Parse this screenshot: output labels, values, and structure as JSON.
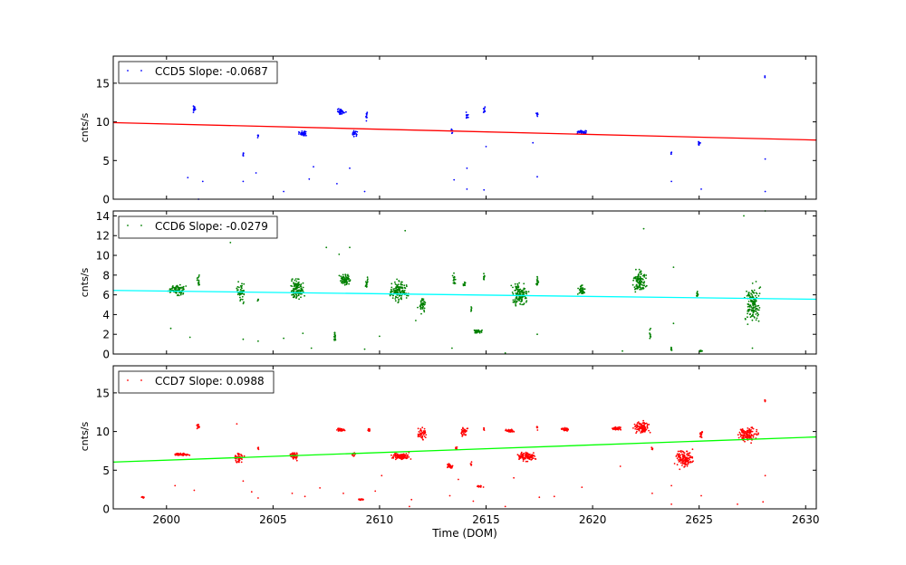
{
  "chart_data": [
    {
      "type": "scatter",
      "legend_label": "CCD5 Slope: -0.0687",
      "legend_placement": "top-left",
      "ylabel": "cnts/s",
      "xlim": [
        2597.5,
        2630.5
      ],
      "ylim": [
        0,
        18.5
      ],
      "yticks": [
        0,
        5,
        10,
        15
      ],
      "point_color": "#0000ff",
      "fit_color": "#ff0000",
      "fit_line": [
        [
          2597.5,
          9.9
        ],
        [
          2630.5,
          7.65
        ]
      ],
      "clusters": [
        {
          "x": 2601.3,
          "y": 11.6,
          "dx": 0.12,
          "dy": 0.6,
          "n": 20
        },
        {
          "x": 2603.6,
          "y": 5.8,
          "dx": 0.05,
          "dy": 0.4,
          "n": 5
        },
        {
          "x": 2604.3,
          "y": 8.2,
          "dx": 0.05,
          "dy": 0.4,
          "n": 5
        },
        {
          "x": 2606.4,
          "y": 8.5,
          "dx": 0.25,
          "dy": 0.4,
          "n": 35
        },
        {
          "x": 2608.2,
          "y": 11.3,
          "dx": 0.25,
          "dy": 0.5,
          "n": 35
        },
        {
          "x": 2608.8,
          "y": 8.5,
          "dx": 0.2,
          "dy": 0.5,
          "n": 20
        },
        {
          "x": 2609.4,
          "y": 10.8,
          "dx": 0.06,
          "dy": 0.8,
          "n": 10
        },
        {
          "x": 2613.4,
          "y": 8.9,
          "dx": 0.08,
          "dy": 0.4,
          "n": 8
        },
        {
          "x": 2614.1,
          "y": 10.9,
          "dx": 0.08,
          "dy": 0.6,
          "n": 10
        },
        {
          "x": 2614.9,
          "y": 11.5,
          "dx": 0.07,
          "dy": 0.7,
          "n": 10
        },
        {
          "x": 2617.4,
          "y": 11.0,
          "dx": 0.06,
          "dy": 0.5,
          "n": 8
        },
        {
          "x": 2619.5,
          "y": 8.7,
          "dx": 0.35,
          "dy": 0.3,
          "n": 40
        },
        {
          "x": 2623.7,
          "y": 6.0,
          "dx": 0.04,
          "dy": 0.3,
          "n": 4
        },
        {
          "x": 2625.0,
          "y": 7.2,
          "dx": 0.07,
          "dy": 0.4,
          "n": 12
        },
        {
          "x": 2628.1,
          "y": 15.8,
          "dx": 0.04,
          "dy": 0.5,
          "n": 3
        }
      ],
      "outliers": [
        [
          2601.0,
          2.8
        ],
        [
          2601.5,
          0.0
        ],
        [
          2601.7,
          2.3
        ],
        [
          2603.6,
          2.3
        ],
        [
          2604.2,
          3.4
        ],
        [
          2605.5,
          1.0
        ],
        [
          2606.7,
          2.6
        ],
        [
          2606.9,
          4.2
        ],
        [
          2608.0,
          2.0
        ],
        [
          2608.6,
          4.0
        ],
        [
          2609.3,
          1.0
        ],
        [
          2613.5,
          2.5
        ],
        [
          2614.1,
          1.3
        ],
        [
          2614.1,
          4.0
        ],
        [
          2614.9,
          1.2
        ],
        [
          2615.0,
          6.8
        ],
        [
          2617.4,
          2.9
        ],
        [
          2617.2,
          7.3
        ],
        [
          2623.7,
          2.3
        ],
        [
          2625.1,
          1.3
        ],
        [
          2628.1,
          1.0
        ],
        [
          2628.1,
          5.2
        ]
      ]
    },
    {
      "type": "scatter",
      "legend_label": "CCD6 Slope: -0.0279",
      "legend_placement": "top-left",
      "ylabel": "cnts/s",
      "xlim": [
        2597.5,
        2630.5
      ],
      "ylim": [
        0,
        14.5
      ],
      "yticks": [
        0,
        2,
        4,
        6,
        8,
        10,
        12,
        14
      ],
      "point_color": "#008000",
      "fit_color": "#00ffff",
      "fit_line": [
        [
          2597.5,
          6.45
        ],
        [
          2630.5,
          5.55
        ]
      ],
      "clusters": [
        {
          "x": 2600.5,
          "y": 6.5,
          "dx": 0.5,
          "dy": 0.8,
          "n": 80
        },
        {
          "x": 2601.5,
          "y": 7.4,
          "dx": 0.1,
          "dy": 0.8,
          "n": 15
        },
        {
          "x": 2603.5,
          "y": 6.2,
          "dx": 0.25,
          "dy": 1.3,
          "n": 50
        },
        {
          "x": 2604.3,
          "y": 5.5,
          "dx": 0.05,
          "dy": 0.4,
          "n": 5
        },
        {
          "x": 2606.1,
          "y": 6.5,
          "dx": 0.45,
          "dy": 1.5,
          "n": 110
        },
        {
          "x": 2607.9,
          "y": 1.8,
          "dx": 0.06,
          "dy": 0.7,
          "n": 15
        },
        {
          "x": 2608.4,
          "y": 7.5,
          "dx": 0.35,
          "dy": 0.8,
          "n": 70
        },
        {
          "x": 2609.4,
          "y": 7.2,
          "dx": 0.07,
          "dy": 0.8,
          "n": 15
        },
        {
          "x": 2610.9,
          "y": 6.4,
          "dx": 0.55,
          "dy": 1.4,
          "n": 140
        },
        {
          "x": 2612.0,
          "y": 5.0,
          "dx": 0.25,
          "dy": 1.1,
          "n": 40
        },
        {
          "x": 2613.5,
          "y": 7.6,
          "dx": 0.1,
          "dy": 1.0,
          "n": 15
        },
        {
          "x": 2614.0,
          "y": 7.0,
          "dx": 0.1,
          "dy": 0.5,
          "n": 10
        },
        {
          "x": 2614.3,
          "y": 4.6,
          "dx": 0.05,
          "dy": 0.4,
          "n": 5
        },
        {
          "x": 2614.6,
          "y": 2.3,
          "dx": 0.25,
          "dy": 0.3,
          "n": 35
        },
        {
          "x": 2614.9,
          "y": 7.8,
          "dx": 0.07,
          "dy": 0.6,
          "n": 10
        },
        {
          "x": 2616.6,
          "y": 6.0,
          "dx": 0.5,
          "dy": 1.5,
          "n": 130
        },
        {
          "x": 2617.4,
          "y": 7.2,
          "dx": 0.07,
          "dy": 1.0,
          "n": 15
        },
        {
          "x": 2619.5,
          "y": 6.5,
          "dx": 0.25,
          "dy": 0.6,
          "n": 40
        },
        {
          "x": 2622.2,
          "y": 7.5,
          "dx": 0.4,
          "dy": 1.5,
          "n": 110
        },
        {
          "x": 2622.7,
          "y": 2.2,
          "dx": 0.05,
          "dy": 0.9,
          "n": 10
        },
        {
          "x": 2623.7,
          "y": 0.6,
          "dx": 0.04,
          "dy": 0.4,
          "n": 8
        },
        {
          "x": 2624.9,
          "y": 6.0,
          "dx": 0.06,
          "dy": 0.6,
          "n": 10
        },
        {
          "x": 2625.1,
          "y": 0.3,
          "dx": 0.15,
          "dy": 0.1,
          "n": 15
        },
        {
          "x": 2627.5,
          "y": 5.0,
          "dx": 0.45,
          "dy": 2.7,
          "n": 140
        }
      ],
      "outliers": [
        [
          2600.2,
          2.6
        ],
        [
          2601.1,
          1.7
        ],
        [
          2603.0,
          11.3
        ],
        [
          2603.6,
          1.5
        ],
        [
          2604.3,
          1.3
        ],
        [
          2605.5,
          1.6
        ],
        [
          2606.4,
          2.1
        ],
        [
          2606.8,
          0.6
        ],
        [
          2607.5,
          10.8
        ],
        [
          2608.1,
          10.1
        ],
        [
          2608.6,
          10.8
        ],
        [
          2609.3,
          0.5
        ],
        [
          2610.0,
          1.8
        ],
        [
          2611.2,
          12.5
        ],
        [
          2611.7,
          3.4
        ],
        [
          2613.4,
          0.6
        ],
        [
          2615.9,
          0.1
        ],
        [
          2617.4,
          2.0
        ],
        [
          2621.4,
          0.3
        ],
        [
          2622.4,
          12.7
        ],
        [
          2623.8,
          8.8
        ],
        [
          2623.8,
          3.1
        ],
        [
          2627.1,
          14.0
        ],
        [
          2628.1,
          14.5
        ],
        [
          2627.5,
          0.6
        ]
      ]
    },
    {
      "type": "scatter",
      "legend_label": "CCD7 Slope: 0.0988",
      "legend_placement": "top-left",
      "ylabel": "cnts/s",
      "xlabel": "Time (DOM)",
      "xlim": [
        2597.5,
        2630.5
      ],
      "ylim": [
        0,
        18.5
      ],
      "yticks": [
        0,
        5,
        10,
        15
      ],
      "xticks": [
        2600,
        2605,
        2610,
        2615,
        2620,
        2625,
        2630
      ],
      "point_color": "#ff0000",
      "fit_color": "#00ff00",
      "fit_line": [
        [
          2597.5,
          6.05
        ],
        [
          2630.5,
          9.3
        ]
      ],
      "clusters": [
        {
          "x": 2598.9,
          "y": 1.5,
          "dx": 0.1,
          "dy": 0.15,
          "n": 10
        },
        {
          "x": 2600.7,
          "y": 7.0,
          "dx": 0.55,
          "dy": 0.25,
          "n": 50
        },
        {
          "x": 2601.5,
          "y": 10.7,
          "dx": 0.1,
          "dy": 0.4,
          "n": 15
        },
        {
          "x": 2603.4,
          "y": 6.6,
          "dx": 0.3,
          "dy": 0.8,
          "n": 50
        },
        {
          "x": 2604.3,
          "y": 7.8,
          "dx": 0.05,
          "dy": 0.4,
          "n": 5
        },
        {
          "x": 2606.0,
          "y": 6.8,
          "dx": 0.25,
          "dy": 0.8,
          "n": 45
        },
        {
          "x": 2608.2,
          "y": 10.2,
          "dx": 0.25,
          "dy": 0.3,
          "n": 35
        },
        {
          "x": 2608.8,
          "y": 7.1,
          "dx": 0.12,
          "dy": 0.4,
          "n": 15
        },
        {
          "x": 2609.1,
          "y": 1.2,
          "dx": 0.2,
          "dy": 0.15,
          "n": 15
        },
        {
          "x": 2609.5,
          "y": 10.2,
          "dx": 0.07,
          "dy": 0.3,
          "n": 10
        },
        {
          "x": 2611.0,
          "y": 6.8,
          "dx": 0.6,
          "dy": 0.6,
          "n": 100
        },
        {
          "x": 2612.0,
          "y": 9.8,
          "dx": 0.3,
          "dy": 1.3,
          "n": 50
        },
        {
          "x": 2613.3,
          "y": 5.5,
          "dx": 0.2,
          "dy": 0.4,
          "n": 30
        },
        {
          "x": 2613.6,
          "y": 7.8,
          "dx": 0.06,
          "dy": 0.3,
          "n": 8
        },
        {
          "x": 2614.0,
          "y": 10.0,
          "dx": 0.25,
          "dy": 0.8,
          "n": 35
        },
        {
          "x": 2614.3,
          "y": 5.8,
          "dx": 0.05,
          "dy": 0.3,
          "n": 5
        },
        {
          "x": 2614.7,
          "y": 2.9,
          "dx": 0.2,
          "dy": 0.15,
          "n": 15
        },
        {
          "x": 2614.9,
          "y": 10.3,
          "dx": 0.05,
          "dy": 0.3,
          "n": 6
        },
        {
          "x": 2616.1,
          "y": 10.1,
          "dx": 0.3,
          "dy": 0.3,
          "n": 35
        },
        {
          "x": 2616.9,
          "y": 6.8,
          "dx": 0.6,
          "dy": 0.9,
          "n": 100
        },
        {
          "x": 2617.4,
          "y": 10.5,
          "dx": 0.05,
          "dy": 0.4,
          "n": 6
        },
        {
          "x": 2618.7,
          "y": 10.3,
          "dx": 0.25,
          "dy": 0.3,
          "n": 40
        },
        {
          "x": 2621.1,
          "y": 10.4,
          "dx": 0.3,
          "dy": 0.3,
          "n": 40
        },
        {
          "x": 2622.3,
          "y": 10.5,
          "dx": 0.45,
          "dy": 1.0,
          "n": 100
        },
        {
          "x": 2622.8,
          "y": 7.8,
          "dx": 0.04,
          "dy": 0.4,
          "n": 5
        },
        {
          "x": 2624.3,
          "y": 6.5,
          "dx": 0.55,
          "dy": 1.5,
          "n": 130
        },
        {
          "x": 2625.1,
          "y": 9.7,
          "dx": 0.12,
          "dy": 0.7,
          "n": 20
        },
        {
          "x": 2627.3,
          "y": 9.6,
          "dx": 0.55,
          "dy": 1.3,
          "n": 130
        },
        {
          "x": 2628.1,
          "y": 14.0,
          "dx": 0.04,
          "dy": 0.4,
          "n": 4
        }
      ],
      "outliers": [
        [
          2600.4,
          3.0
        ],
        [
          2601.3,
          2.4
        ],
        [
          2603.3,
          11.0
        ],
        [
          2603.6,
          3.6
        ],
        [
          2604.0,
          2.2
        ],
        [
          2604.3,
          1.4
        ],
        [
          2605.9,
          2.0
        ],
        [
          2606.5,
          1.6
        ],
        [
          2607.2,
          2.7
        ],
        [
          2608.3,
          2.0
        ],
        [
          2609.8,
          2.3
        ],
        [
          2610.1,
          4.3
        ],
        [
          2611.5,
          1.2
        ],
        [
          2611.4,
          0.3
        ],
        [
          2613.3,
          1.7
        ],
        [
          2613.7,
          3.8
        ],
        [
          2614.4,
          1.0
        ],
        [
          2615.9,
          0.3
        ],
        [
          2616.3,
          4.0
        ],
        [
          2617.5,
          1.5
        ],
        [
          2618.2,
          1.6
        ],
        [
          2619.5,
          2.8
        ],
        [
          2621.3,
          5.5
        ],
        [
          2622.8,
          2.0
        ],
        [
          2623.7,
          0.6
        ],
        [
          2623.7,
          3.0
        ],
        [
          2625.1,
          1.7
        ],
        [
          2626.8,
          0.6
        ],
        [
          2628.0,
          0.9
        ],
        [
          2628.1,
          4.3
        ]
      ]
    }
  ]
}
